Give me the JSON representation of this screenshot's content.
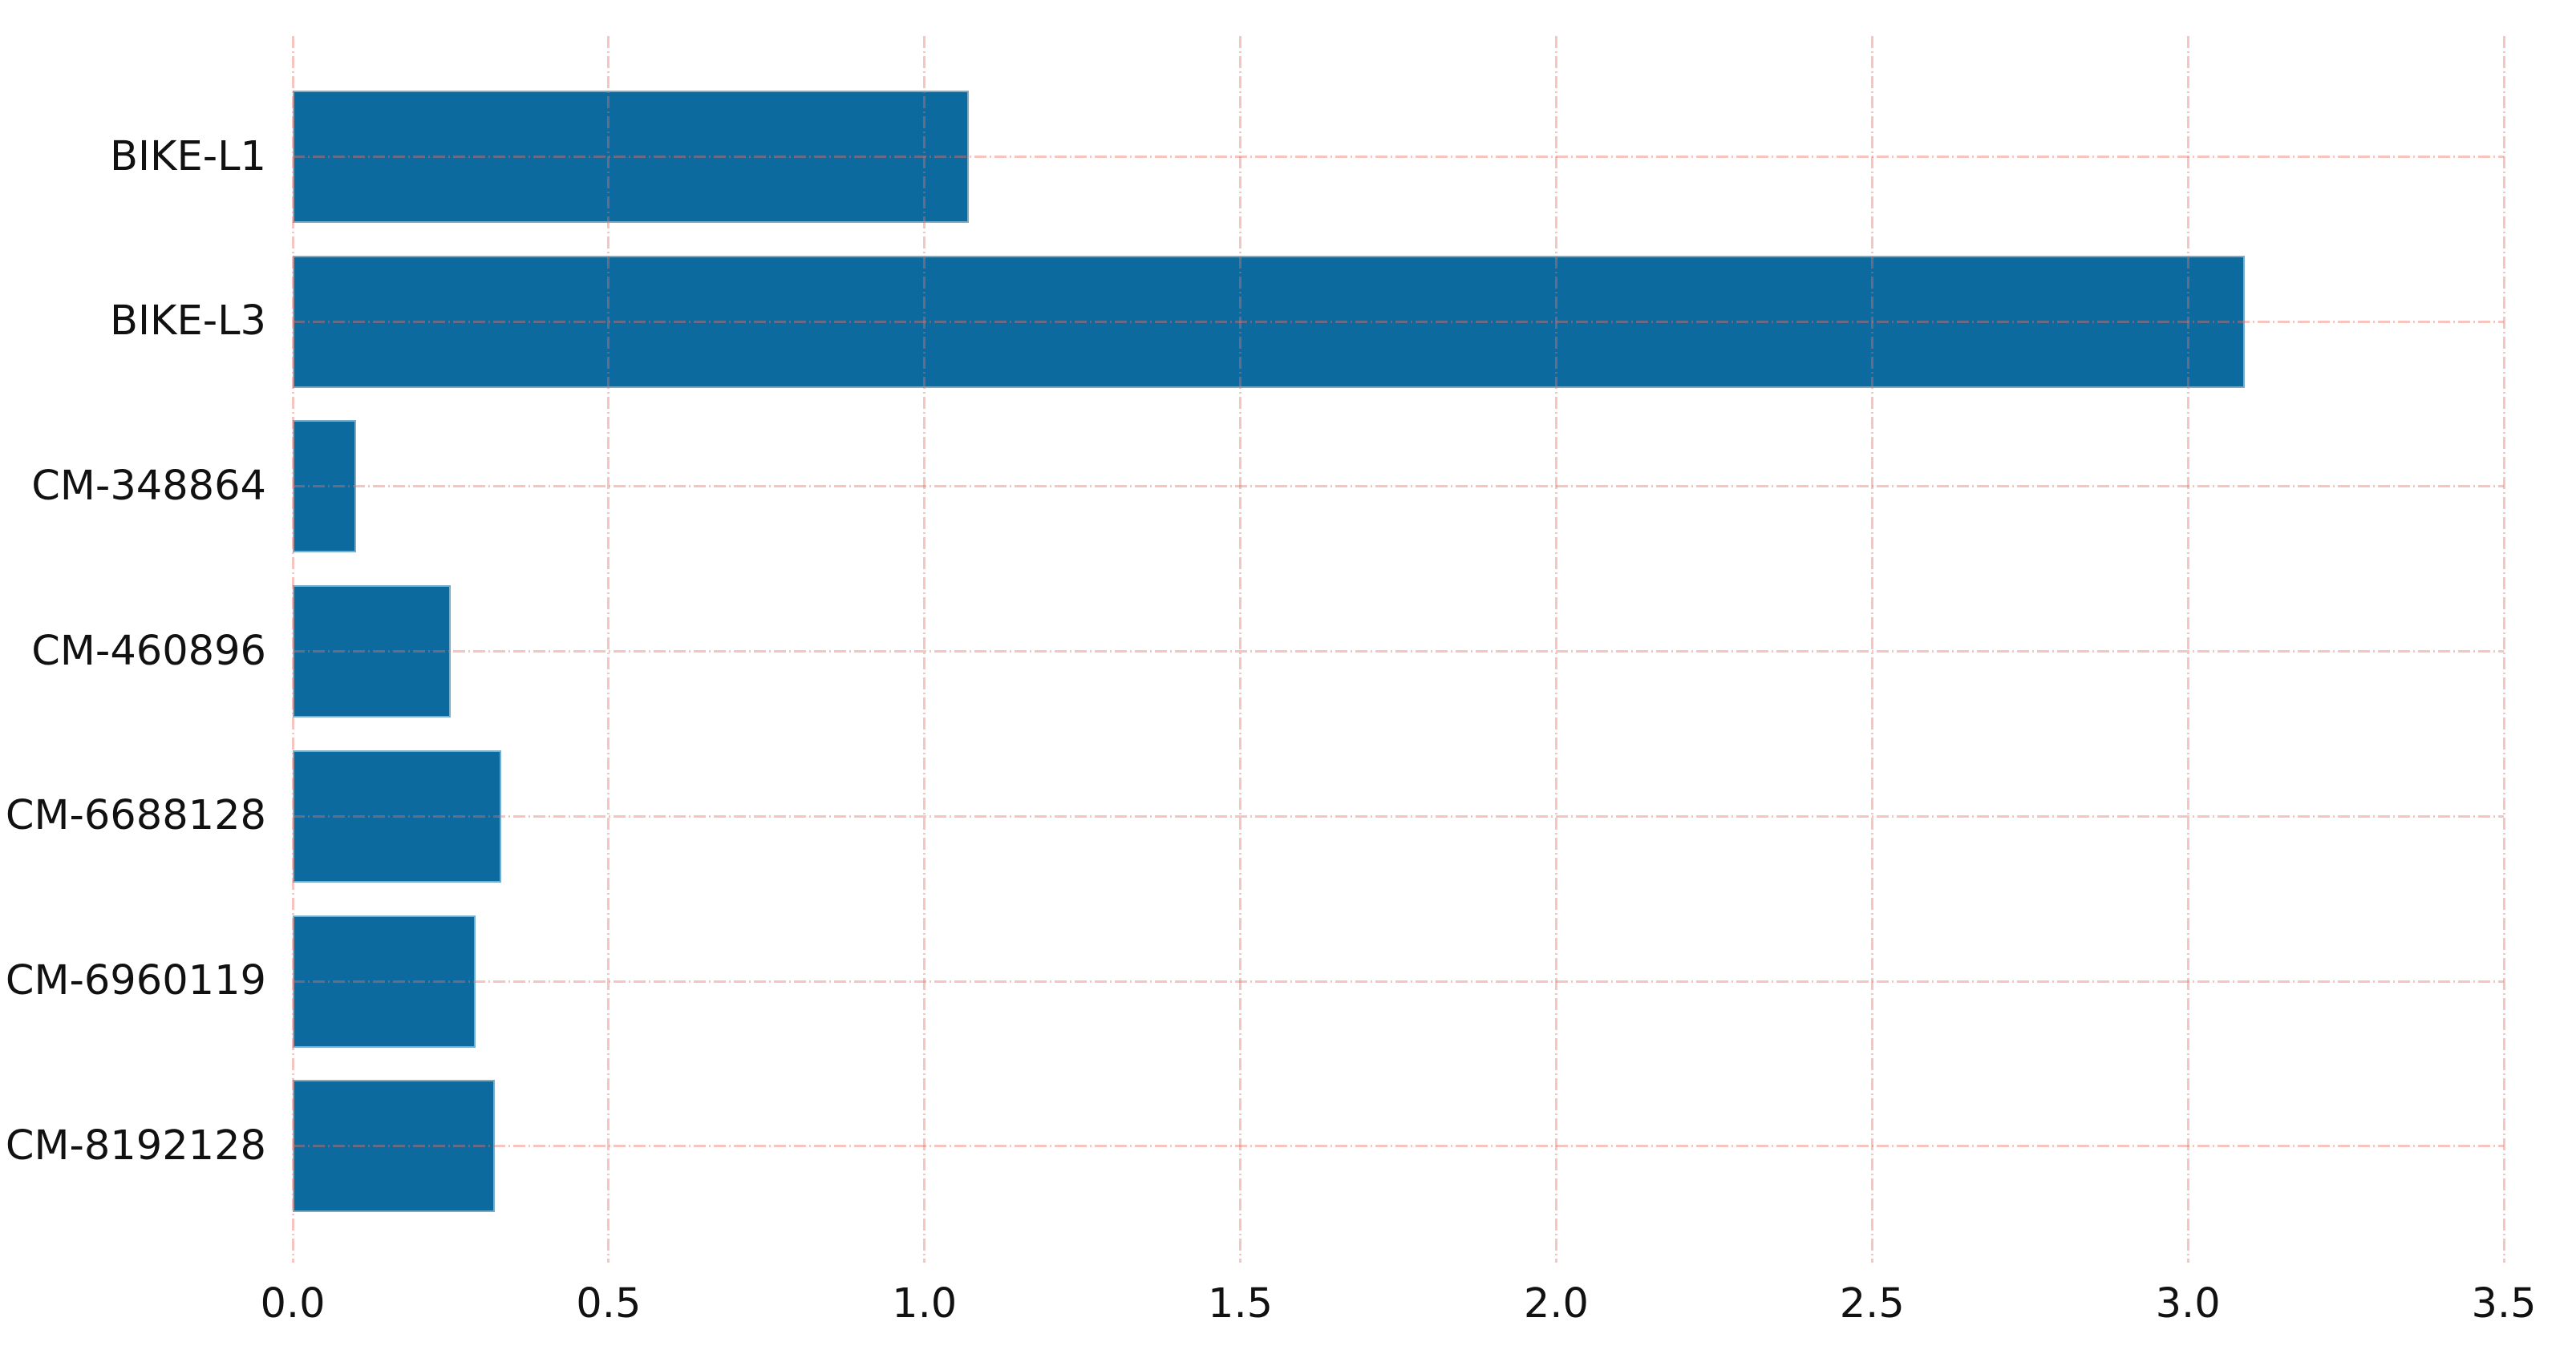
{
  "chart_data": {
    "type": "bar",
    "orientation": "horizontal",
    "title": "",
    "xlabel": "",
    "ylabel": "",
    "categories": [
      "BIKE-L1",
      "BIKE-L3",
      "CM-348864",
      "CM-460896",
      "CM-6688128",
      "CM-6960119",
      "CM-8192128"
    ],
    "values": [
      1.07,
      3.09,
      0.1,
      0.25,
      0.33,
      0.29,
      0.32
    ],
    "xlim": [
      0,
      3.5
    ],
    "xticks": [
      0,
      0.5,
      1,
      1.5,
      2,
      2.5,
      3,
      3.5
    ],
    "xtick_labels": [
      "0.0",
      "0.5",
      "1.0",
      "1.5",
      "2.0",
      "2.5",
      "3.0",
      "3.5"
    ],
    "legend": "none",
    "grid": "dash-dot lines on both axes, drawn over bars",
    "colors": {
      "bar": "#0d6a9e",
      "bar_edge": "rgba(255,255,255,0.45)",
      "gridline": "rgba(237,108,98,0.4)",
      "text": "#111111",
      "background": "#ffffff"
    }
  }
}
